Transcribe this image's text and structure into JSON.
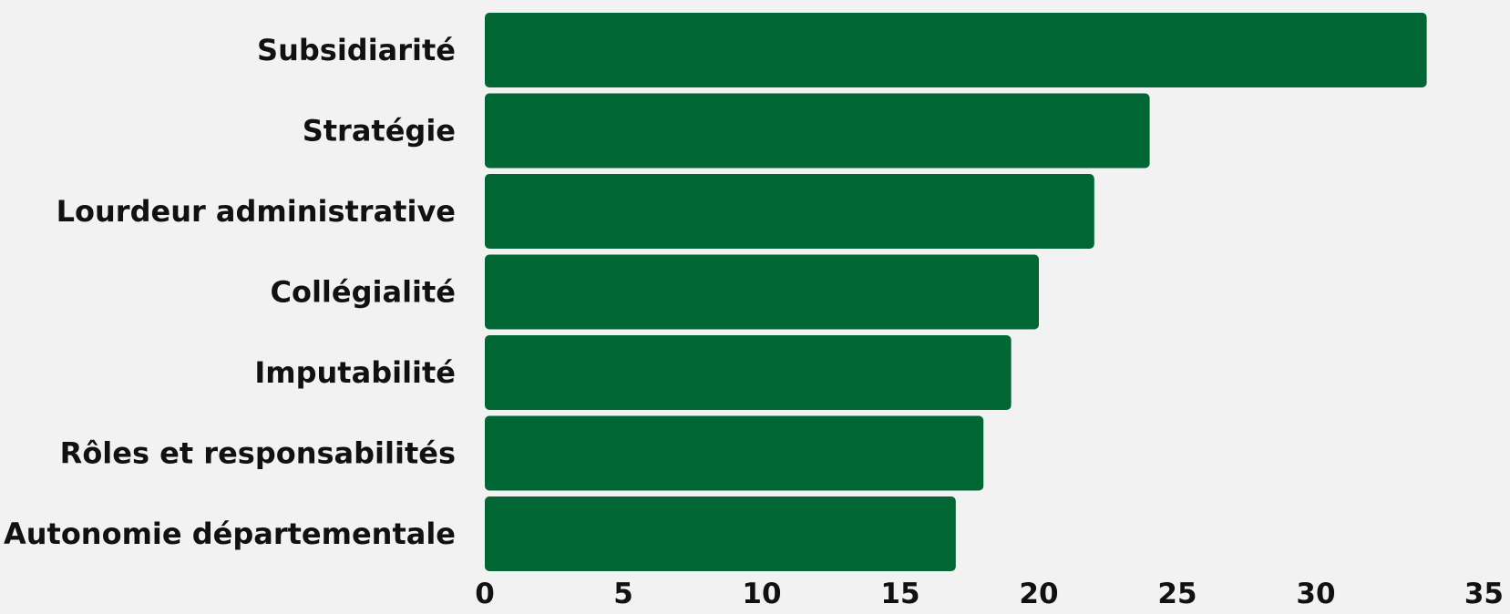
{
  "chart_data": {
    "type": "bar",
    "orientation": "horizontal",
    "categories": [
      "Subsidiarité",
      "Stratégie",
      "Lourdeur administrative",
      "Collégialité",
      "Imputabilité",
      "Rôles et responsabilités",
      "Autonomie départementale"
    ],
    "values": [
      34,
      24,
      22,
      20,
      19,
      18,
      17
    ],
    "xlim": [
      0,
      35
    ],
    "xticks": [
      "0",
      "5",
      "10",
      "15",
      "20",
      "25",
      "30",
      "35"
    ],
    "grid": false,
    "legend": "none",
    "bar_color": "#006633",
    "background": "#f2f2f2"
  }
}
